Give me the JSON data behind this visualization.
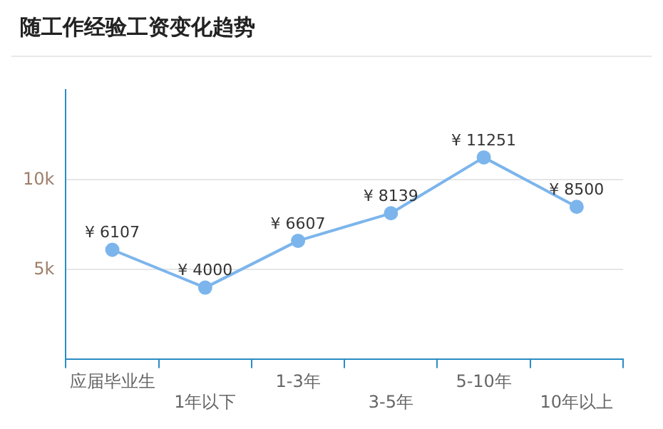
{
  "chart_data": {
    "type": "line",
    "title": "随工作经验工资变化趋势",
    "categories": [
      "应届毕业生",
      "1年以下",
      "1-3年",
      "3-5年",
      "5-10年",
      "10年以上"
    ],
    "series": [
      {
        "color": "#7cb5ec",
        "values": [
          6107,
          4000,
          6607,
          8139,
          11251,
          8500
        ],
        "value_labels": [
          "¥ 6107",
          "¥ 4000",
          "¥ 6607",
          "¥ 8139",
          "¥ 11251",
          "¥ 8500"
        ]
      }
    ],
    "ylim": [
      0,
      15000
    ],
    "yticks": [
      {
        "value": 5000,
        "label": "5k"
      },
      {
        "value": 10000,
        "label": "10k"
      }
    ],
    "grid": "y",
    "legend": false,
    "marker": "circle",
    "line_style": "solid"
  }
}
